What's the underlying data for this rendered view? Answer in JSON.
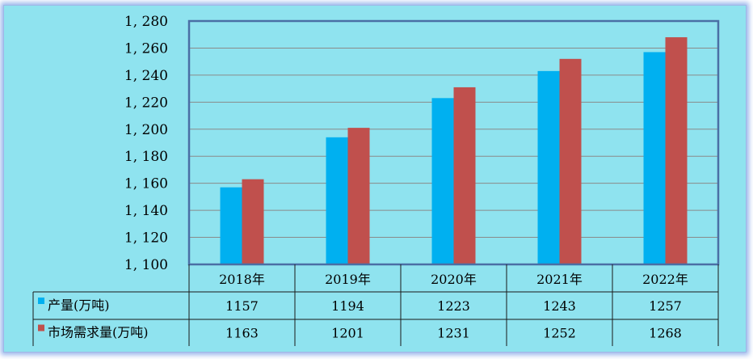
{
  "chart_data": {
    "type": "bar",
    "categories": [
      "2018年",
      "2019年",
      "2020年",
      "2021年",
      "2022年"
    ],
    "series": [
      {
        "name": "产量(万吨)",
        "values": [
          1157,
          1194,
          1223,
          1243,
          1257
        ],
        "color": "#00b0f0"
      },
      {
        "name": "市场需求量(万吨)",
        "values": [
          1163,
          1201,
          1231,
          1252,
          1268
        ],
        "color": "#c0504d"
      }
    ],
    "yticks": [
      "1, 100",
      "1, 120",
      "1, 140",
      "1, 160",
      "1, 180",
      "1, 200",
      "1, 220",
      "1, 240",
      "1, 260",
      "1, 280"
    ],
    "ylim": [
      1100,
      1280
    ],
    "grid": true,
    "data_table": true,
    "background": "#8fe3ef",
    "plot_border": "#4a6fa5"
  }
}
